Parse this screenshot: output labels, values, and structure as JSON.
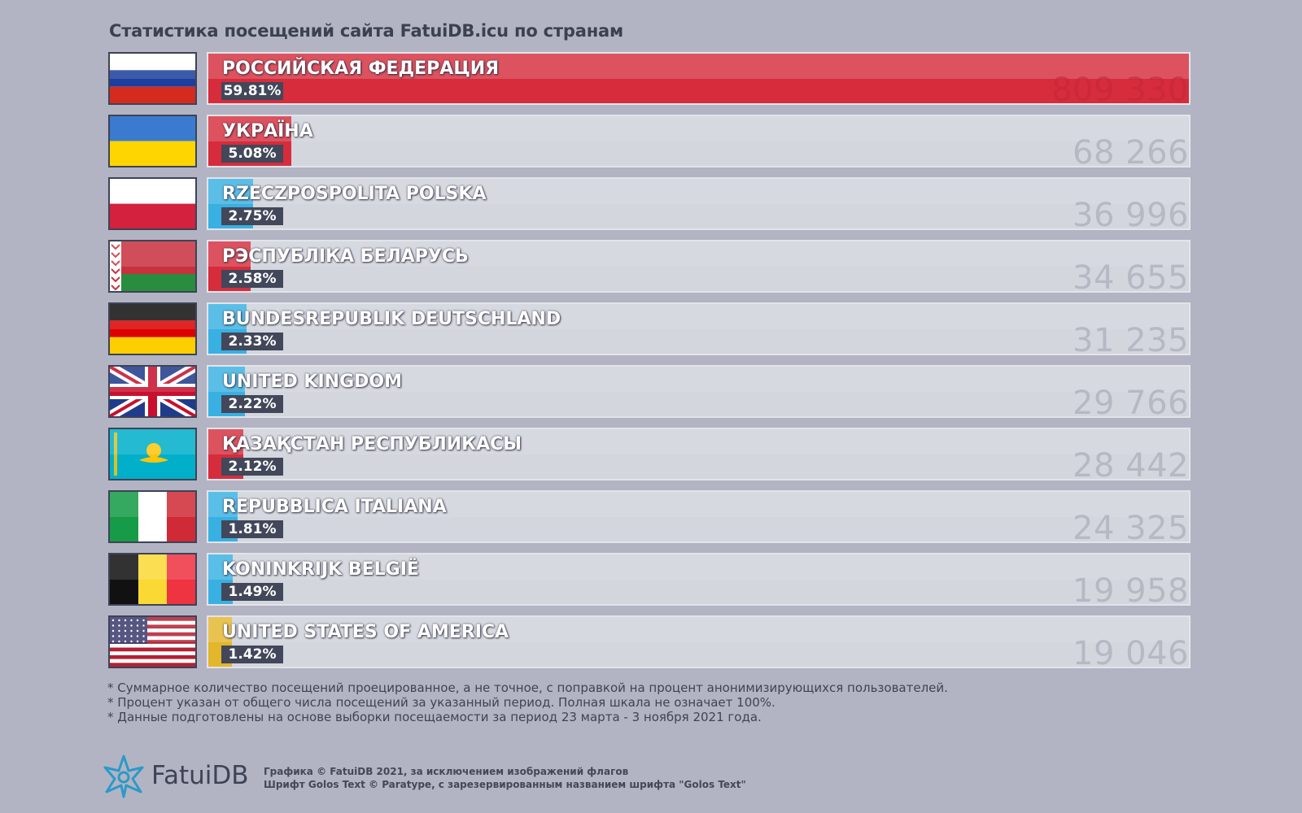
{
  "title": "Статистика посещений сайта FatuiDB.icu по странам",
  "colors": {
    "red": "#d62c3c",
    "blue": "#38b0e2",
    "yellow": "#e3b62b"
  },
  "chart_data": {
    "type": "bar",
    "orientation": "horizontal",
    "title": "Статистика посещений сайта FatuiDB.icu по странам",
    "scale_max": 59.81,
    "rows": [
      {
        "country": "РОССИЙСКАЯ ФЕДЕРАЦИЯ",
        "percent": 59.81,
        "percent_label": "59.81%",
        "visits": "809 330",
        "color": "red",
        "flag": "russia-flag"
      },
      {
        "country": "УКРАЇНА",
        "percent": 5.08,
        "percent_label": "5.08%",
        "visits": "68 266",
        "color": "red",
        "flag": "ukraine-flag"
      },
      {
        "country": "RZECZPOSPOLITA POLSKA",
        "percent": 2.75,
        "percent_label": "2.75%",
        "visits": "36 996",
        "color": "blue",
        "flag": "poland-flag"
      },
      {
        "country": "РЭСПУБЛІКА БЕЛАРУСЬ",
        "percent": 2.58,
        "percent_label": "2.58%",
        "visits": "34 655",
        "color": "red",
        "flag": "belarus-flag"
      },
      {
        "country": "BUNDESREPUBLIK DEUTSCHLAND",
        "percent": 2.33,
        "percent_label": "2.33%",
        "visits": "31 235",
        "color": "blue",
        "flag": "germany-flag"
      },
      {
        "country": "UNITED KINGDOM",
        "percent": 2.22,
        "percent_label": "2.22%",
        "visits": "29 766",
        "color": "blue",
        "flag": "uk-flag"
      },
      {
        "country": "ҚАЗАҚСТАН РЕСПУБЛИКАСЫ",
        "percent": 2.12,
        "percent_label": "2.12%",
        "visits": "28 442",
        "color": "red",
        "flag": "kazakhstan-flag"
      },
      {
        "country": "REPUBBLICA ITALIANA",
        "percent": 1.81,
        "percent_label": "1.81%",
        "visits": "24 325",
        "color": "blue",
        "flag": "italy-flag"
      },
      {
        "country": "KONINKRIJK BELGIË",
        "percent": 1.49,
        "percent_label": "1.49%",
        "visits": "19 958",
        "color": "blue",
        "flag": "belgium-flag"
      },
      {
        "country": "UNITED STATES OF AMERICA",
        "percent": 1.42,
        "percent_label": "1.42%",
        "visits": "19 046",
        "color": "yellow",
        "flag": "usa-flag"
      }
    ]
  },
  "notes": [
    "* Суммарное количество посещений проецированное, а не точное, с поправкой на процент анонимизирующихся пользователей.",
    "* Процент указан от общего числа посещений за указанный период. Полная шкала не означает 100%.",
    "* Данные подготовлены на основе выборки посещаемости за период 23 марта - 3 ноября 2021 года."
  ],
  "footer": {
    "brand": "FatuiDB",
    "credit_line1": "Графика © FatuiDB 2021, за исключением изображений флагов",
    "credit_line2": "Шрифт Golos Text © Paratype, с зарезервированным названием шрифта \"Golos Text\""
  }
}
